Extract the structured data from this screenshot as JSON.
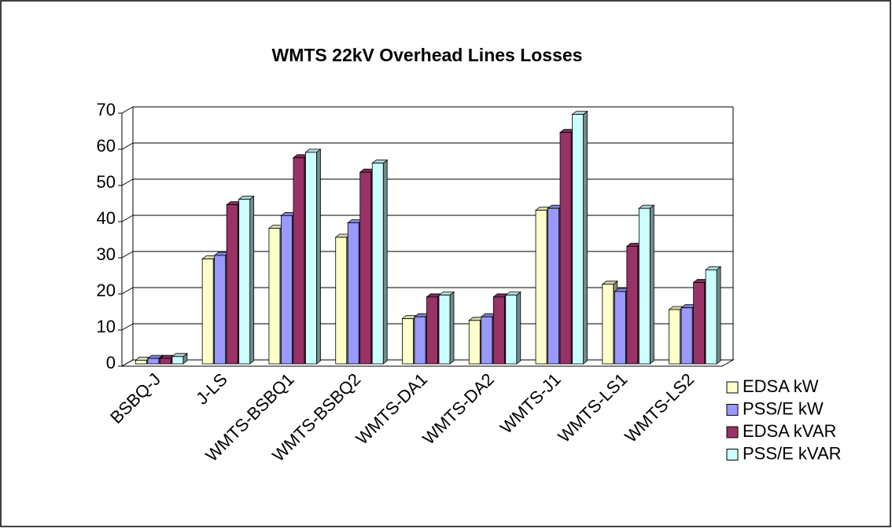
{
  "chart_data": {
    "type": "bar",
    "title": "WMTS 22kV Overhead Lines Losses",
    "categories": [
      "BSBQ-J",
      "J-LS",
      "WMTS-BSBQ1",
      "WMTS-BSBQ2",
      "WMTS-DA1",
      "WMTS-DA2",
      "WMTS-J1",
      "WMTS-LS1",
      "WMTS-LS2"
    ],
    "series": [
      {
        "name": "EDSA kW",
        "color": "#ffffcc",
        "values": [
          1,
          29,
          37.5,
          35,
          12.5,
          12,
          42.5,
          22,
          15
        ]
      },
      {
        "name": "PSS/E kW",
        "color": "#9999ff",
        "values": [
          1.5,
          30,
          41,
          39,
          13,
          13,
          43,
          20,
          15.5
        ]
      },
      {
        "name": "EDSA kVAR",
        "color": "#993366",
        "values": [
          1.5,
          44,
          57,
          53,
          18.5,
          18.5,
          64,
          32.5,
          22.5
        ]
      },
      {
        "name": "PSS/E kVAR",
        "color": "#ccffff",
        "values": [
          2,
          45.5,
          58.5,
          55.5,
          19,
          19,
          69,
          43,
          26
        ]
      }
    ],
    "ylim": [
      0,
      70
    ],
    "yticks": [
      0,
      10,
      20,
      30,
      40,
      50,
      60,
      70
    ],
    "grid": true,
    "legend": "right"
  }
}
